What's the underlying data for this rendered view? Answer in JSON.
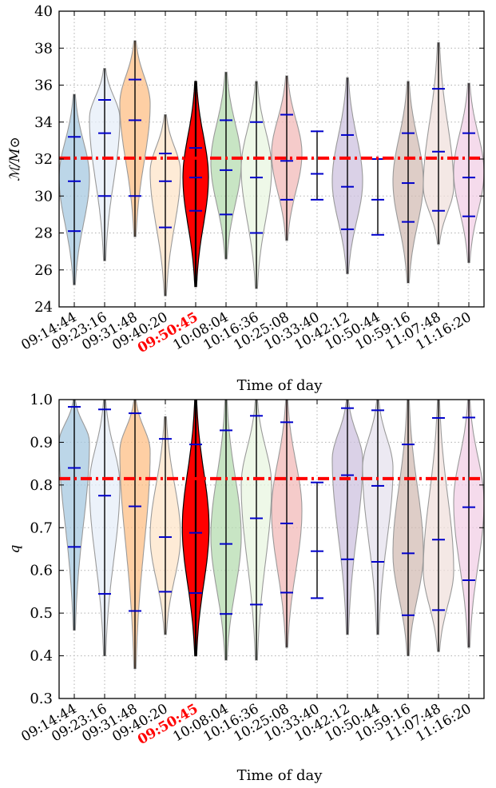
{
  "chart_data": [
    {
      "type": "violin",
      "ylabel": "ℳ/M⊙",
      "xlabel": "Time of day",
      "ylim": [
        24,
        40
      ],
      "yticks": [
        24,
        26,
        28,
        30,
        32,
        34,
        36,
        38,
        40
      ],
      "grid": true,
      "reference_line": 32.05,
      "highlight_index": 4,
      "highlight_color": "#ff0000",
      "categories": [
        "09:14:44",
        "09:23:16",
        "09:31:48",
        "09:40:20",
        "09:50:45",
        "10:08:04",
        "10:16:36",
        "10:25:08",
        "10:33:40",
        "10:42:12",
        "10:50:44",
        "10:59:16",
        "11:07:48",
        "11:16:20"
      ],
      "series": [
        {
          "color": "#a6c8e0",
          "min": 25.2,
          "max": 35.5,
          "p_low": 28.1,
          "median": 30.8,
          "p_high": 33.2,
          "peak": 31.0,
          "width": 0.5
        },
        {
          "color": "#e6eef8",
          "min": 26.5,
          "max": 36.9,
          "p_low": 30.0,
          "median": 33.4,
          "p_high": 35.2,
          "peak": 34.2,
          "width": 0.5
        },
        {
          "color": "#fdbf85",
          "min": 27.8,
          "max": 38.4,
          "p_low": 30.0,
          "median": 34.1,
          "p_high": 36.3,
          "peak": 35.0,
          "width": 0.5
        },
        {
          "color": "#fde4c8",
          "min": 24.6,
          "max": 34.4,
          "p_low": 28.3,
          "median": 30.8,
          "p_high": 32.3,
          "peak": 31.3,
          "width": 0.5
        },
        {
          "color": "#ff0000",
          "min": 25.1,
          "max": 36.2,
          "p_low": 29.2,
          "median": 31.0,
          "p_high": 32.6,
          "peak": 31.0,
          "width": 0.42
        },
        {
          "color": "#b5dcb0",
          "min": 26.6,
          "max": 36.7,
          "p_low": 29.0,
          "median": 31.4,
          "p_high": 34.1,
          "peak": 31.8,
          "width": 0.5
        },
        {
          "color": "#e8f5e0",
          "min": 25.0,
          "max": 36.2,
          "p_low": 28.0,
          "median": 31.0,
          "p_high": 34.0,
          "peak": 31.5,
          "width": 0.5
        },
        {
          "color": "#f2b9b8",
          "min": 27.6,
          "max": 36.5,
          "p_low": 29.8,
          "median": 31.9,
          "p_high": 34.4,
          "peak": 32.3,
          "width": 0.5
        },
        {
          "color": "#ffffff",
          "min": 29.8,
          "max": 33.5,
          "p_low": 29.8,
          "median": 31.2,
          "p_high": 33.5,
          "peak": 31.2,
          "width": 0.0
        },
        {
          "color": "#cdc2df",
          "min": 25.8,
          "max": 36.4,
          "p_low": 28.2,
          "median": 30.5,
          "p_high": 33.3,
          "peak": 30.8,
          "width": 0.5
        },
        {
          "color": "#ffffff",
          "min": 27.9,
          "max": 32.0,
          "p_low": 27.9,
          "median": 29.8,
          "p_high": 32.0,
          "peak": 29.8,
          "width": 0.0
        },
        {
          "color": "#d3bcb4",
          "min": 25.3,
          "max": 36.2,
          "p_low": 28.6,
          "median": 30.7,
          "p_high": 33.4,
          "peak": 30.8,
          "width": 0.5
        },
        {
          "color": "#f0e0dc",
          "min": 27.4,
          "max": 38.3,
          "p_low": 29.2,
          "median": 32.4,
          "p_high": 35.8,
          "peak": 30.5,
          "width": 0.5
        },
        {
          "color": "#f1cfe6",
          "min": 26.4,
          "max": 36.1,
          "p_low": 28.9,
          "median": 31.0,
          "p_high": 33.4,
          "peak": 31.3,
          "width": 0.5
        }
      ]
    },
    {
      "type": "violin",
      "ylabel": "q",
      "xlabel": "Time of day",
      "ylim": [
        0.3,
        1.0
      ],
      "yticks": [
        0.3,
        0.4,
        0.5,
        0.6,
        0.7,
        0.8,
        0.9,
        1.0
      ],
      "grid": true,
      "reference_line": 0.815,
      "highlight_index": 4,
      "highlight_color": "#ff0000",
      "categories": [
        "09:14:44",
        "09:23:16",
        "09:31:48",
        "09:40:20",
        "09:50:45",
        "10:08:04",
        "10:16:36",
        "10:25:08",
        "10:33:40",
        "10:42:12",
        "10:50:44",
        "10:59:16",
        "11:07:48",
        "11:16:20"
      ],
      "series": [
        {
          "color": "#a6c8e0",
          "min": 0.46,
          "max": 1.0,
          "p_low": 0.655,
          "median": 0.84,
          "p_high": 0.983,
          "peak": 0.9,
          "width": 0.5
        },
        {
          "color": "#e6eef8",
          "min": 0.4,
          "max": 1.0,
          "p_low": 0.545,
          "median": 0.775,
          "p_high": 0.977,
          "peak": 0.8,
          "width": 0.5
        },
        {
          "color": "#fdbf85",
          "min": 0.37,
          "max": 1.0,
          "p_low": 0.505,
          "median": 0.75,
          "p_high": 0.968,
          "peak": 0.88,
          "width": 0.5
        },
        {
          "color": "#fde4c8",
          "min": 0.45,
          "max": 0.96,
          "p_low": 0.55,
          "median": 0.678,
          "p_high": 0.908,
          "peak": 0.68,
          "width": 0.5
        },
        {
          "color": "#ff0000",
          "min": 0.4,
          "max": 1.0,
          "p_low": 0.547,
          "median": 0.688,
          "p_high": 0.895,
          "peak": 0.7,
          "width": 0.44
        },
        {
          "color": "#b5dcb0",
          "min": 0.39,
          "max": 1.0,
          "p_low": 0.498,
          "median": 0.662,
          "p_high": 0.928,
          "peak": 0.68,
          "width": 0.5
        },
        {
          "color": "#e8f5e0",
          "min": 0.39,
          "max": 1.0,
          "p_low": 0.52,
          "median": 0.722,
          "p_high": 0.962,
          "peak": 0.8,
          "width": 0.5
        },
        {
          "color": "#f2b9b8",
          "min": 0.42,
          "max": 1.0,
          "p_low": 0.548,
          "median": 0.71,
          "p_high": 0.947,
          "peak": 0.74,
          "width": 0.5
        },
        {
          "color": "#ffffff",
          "min": 0.535,
          "max": 0.806,
          "p_low": 0.535,
          "median": 0.645,
          "p_high": 0.806,
          "peak": 0.645,
          "width": 0.0
        },
        {
          "color": "#cdc2df",
          "min": 0.45,
          "max": 1.0,
          "p_low": 0.626,
          "median": 0.823,
          "p_high": 0.98,
          "peak": 0.86,
          "width": 0.5
        },
        {
          "color": "#e6e2ee",
          "min": 0.45,
          "max": 1.0,
          "p_low": 0.62,
          "median": 0.798,
          "p_high": 0.975,
          "peak": 0.84,
          "width": 0.5
        },
        {
          "color": "#d3bcb4",
          "min": 0.4,
          "max": 1.0,
          "p_low": 0.495,
          "median": 0.64,
          "p_high": 0.895,
          "peak": 0.64,
          "width": 0.5
        },
        {
          "color": "#f0e0dc",
          "min": 0.41,
          "max": 1.0,
          "p_low": 0.507,
          "median": 0.672,
          "p_high": 0.957,
          "peak": 0.6,
          "width": 0.5
        },
        {
          "color": "#f1cfe6",
          "min": 0.42,
          "max": 1.0,
          "p_low": 0.577,
          "median": 0.748,
          "p_high": 0.958,
          "peak": 0.76,
          "width": 0.5
        }
      ]
    }
  ]
}
